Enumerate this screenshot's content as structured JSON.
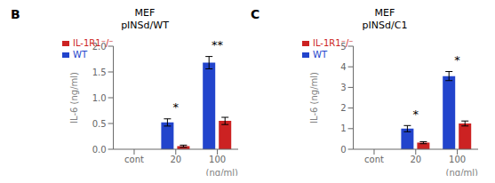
{
  "chart_data": [
    {
      "type": "bar",
      "title": "MEF\npINSd/WT",
      "ylabel": "IL-6 (ng/ml)",
      "xlabel": "(ng/ml)",
      "categories": [
        "cont",
        "20",
        "100"
      ],
      "series": [
        {
          "name": "WT",
          "color": "#2244cc",
          "values": [
            0.0,
            0.52,
            1.68
          ],
          "errors": [
            0.0,
            0.07,
            0.12
          ]
        },
        {
          "name": "IL-1R1⁻/⁻",
          "color": "#cc2222",
          "values": [
            0.0,
            0.06,
            0.55
          ],
          "errors": [
            0.0,
            0.02,
            0.07
          ]
        }
      ],
      "ylim": [
        0,
        2.0
      ],
      "yticks": [
        {
          "value": 0.0,
          "label": "0.0"
        },
        0.5,
        {
          "value": 1.0,
          "label": "1.0"
        },
        1.5,
        {
          "value": 2.0,
          "label": "2.0"
        }
      ],
      "annotations": [
        {
          "text": "B"
        },
        {
          "text": "*",
          "category": "20"
        },
        {
          "text": "**",
          "category": "100"
        }
      ],
      "legend": "upper left",
      "grid": false
    },
    {
      "type": "bar",
      "title": "MEF\npINSd/C1",
      "ylabel": "IL-6 (ng/ml)",
      "xlabel": "(ng/ml)",
      "categories": [
        "cont",
        "20",
        "100"
      ],
      "series": [
        {
          "name": "WT",
          "color": "#2244cc",
          "values": [
            0.0,
            1.0,
            3.55
          ],
          "errors": [
            0.0,
            0.15,
            0.22
          ]
        },
        {
          "name": "IL-1R1⁻/⁻",
          "color": "#cc2222",
          "values": [
            0.0,
            0.32,
            1.25
          ],
          "errors": [
            0.0,
            0.05,
            0.12
          ]
        }
      ],
      "ylim": [
        0,
        5
      ],
      "yticks": [
        0,
        1,
        2,
        3,
        4,
        5
      ],
      "annotations": [
        {
          "text": "C"
        },
        {
          "text": "*",
          "category": "20"
        },
        {
          "text": "*",
          "category": "100"
        }
      ],
      "legend": "upper left",
      "grid": false
    }
  ]
}
